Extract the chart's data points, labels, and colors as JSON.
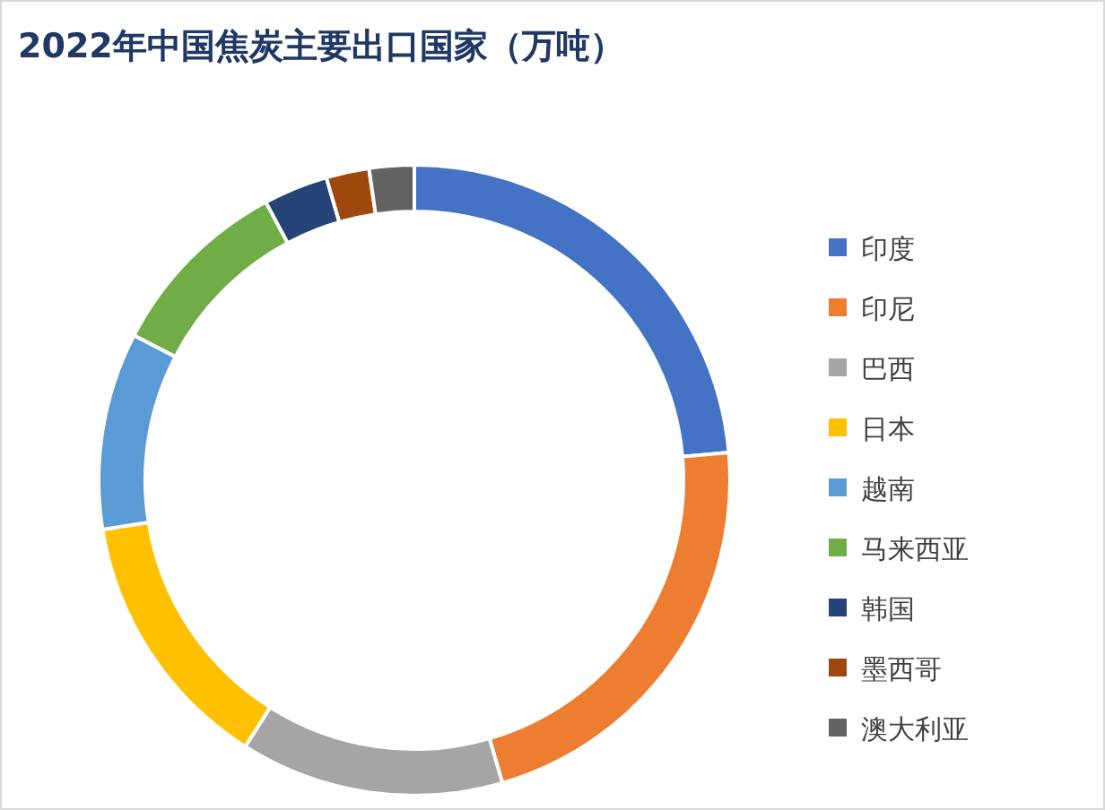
{
  "chart_data": {
    "type": "donut",
    "title": "2022年中国焦炭主要出口国家（万吨）",
    "categories": [
      "印度",
      "印尼",
      "巴西",
      "日本",
      "越南",
      "马来西亚",
      "韩国",
      "墨西哥",
      "澳大利亚"
    ],
    "values": [
      23.6,
      21.9,
      13.5,
      13.5,
      10.1,
      9.6,
      3.3,
      2.2,
      2.3
    ],
    "colors": [
      "#4472c4",
      "#ed7d31",
      "#a5a5a5",
      "#ffc000",
      "#5b9bd5",
      "#70ad47",
      "#264478",
      "#9e480e",
      "#636363"
    ],
    "legend": "right"
  }
}
